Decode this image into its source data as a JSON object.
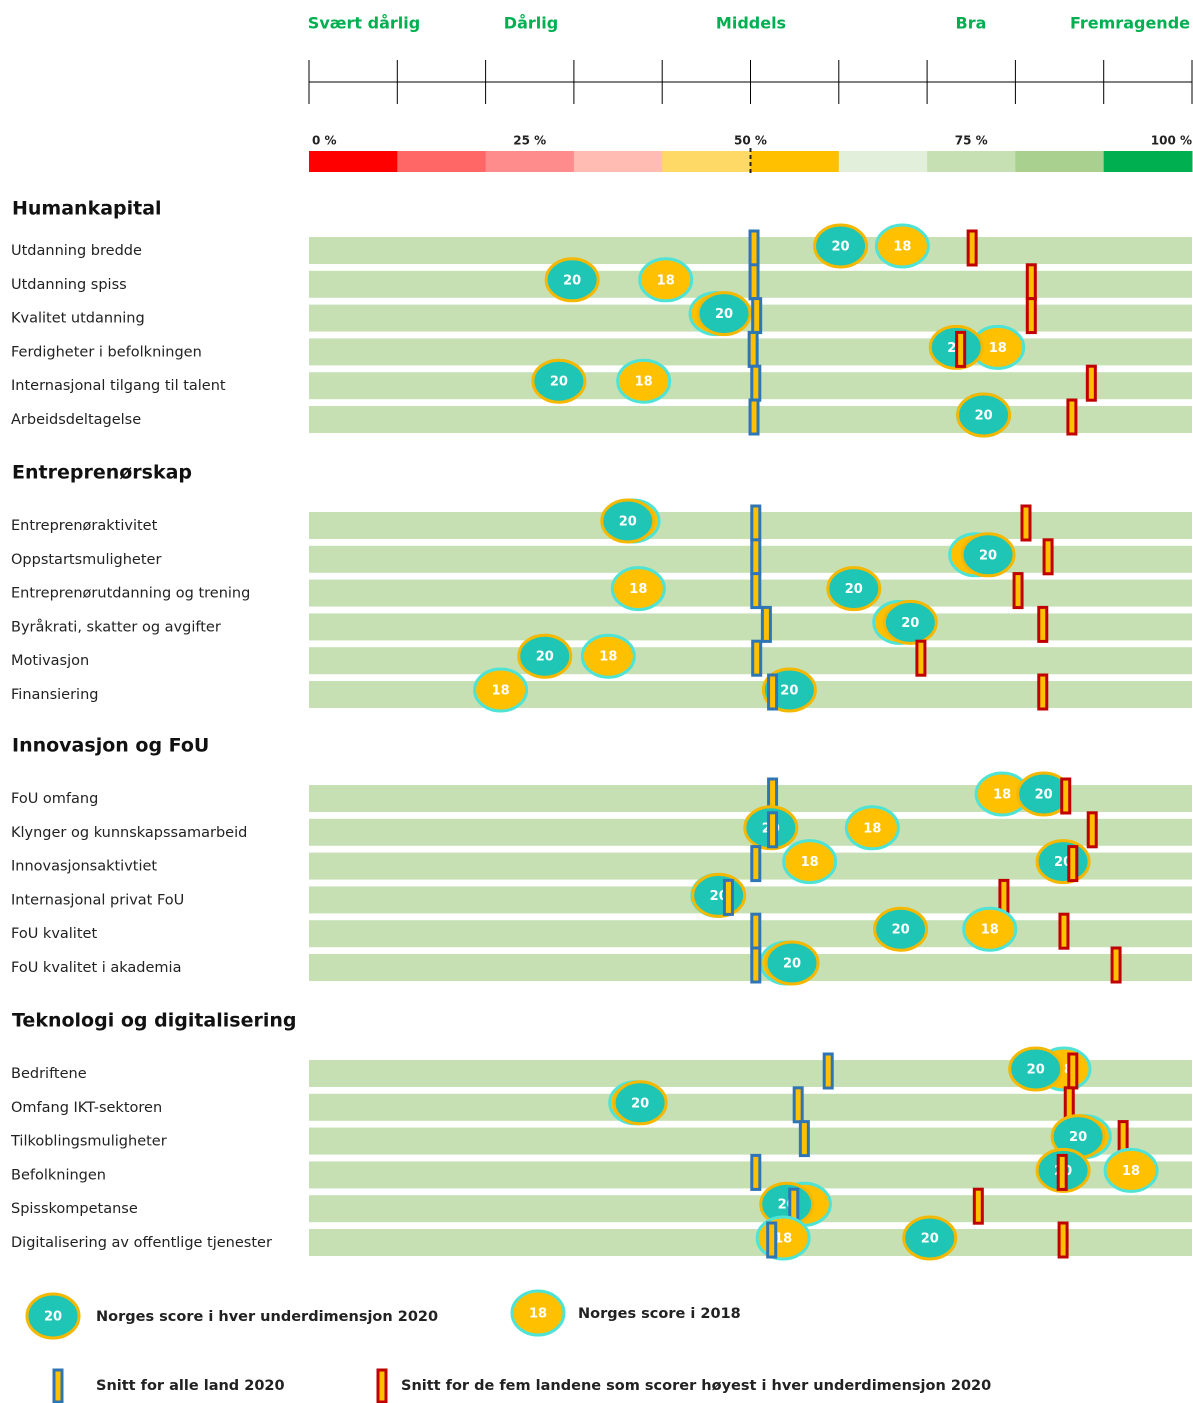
{
  "chart_data": {
    "type": "dot",
    "rating_labels": [
      "Svært dårlig",
      "Dårlig",
      "Middels",
      "Bra",
      "Fremragende"
    ],
    "xlim": [
      0,
      100
    ],
    "xticks": [
      {
        "value": 0,
        "label": "0 %"
      },
      {
        "value": 25,
        "label": "25 %"
      },
      {
        "value": 50,
        "label": "50 %"
      },
      {
        "value": 75,
        "label": "75 %"
      },
      {
        "value": 100,
        "label": "100 %"
      }
    ],
    "xminor_ticks": [
      0,
      10,
      20,
      30,
      40,
      50,
      60,
      70,
      80,
      90,
      100
    ],
    "band_colors": [
      "#ff0000",
      "#ff6666",
      "#ff8c8c",
      "#ffbcb2",
      "#ffd966",
      "#ffc000",
      "#e2efda",
      "#c6e0b4",
      "#a9d08e",
      "#00b050"
    ],
    "row_color": "#c6e0b4",
    "series": [
      {
        "name": "Norges score i hver underdimensjon 2020",
        "marker_label": "20",
        "color": "#1fc6b6",
        "edge": "#f5b800"
      },
      {
        "name": "Norges score i 2018",
        "marker_label": "18",
        "color": "#ffc000",
        "edge": "#4fe3d6"
      },
      {
        "name": "Snitt for alle land 2020",
        "color": "#ffc000",
        "edge": "#2e75b6"
      },
      {
        "name": "Snitt for de fem landene som scorer høyest i hver underdimensjon 2020",
        "color": "#ffc000",
        "edge": "#c00000"
      }
    ],
    "groups": [
      {
        "title": "Humankapital",
        "categories": [
          "Utdanning bredde",
          "Utdanning spiss",
          "Kvalitet utdanning",
          "Ferdigheter i befolkningen",
          "Internasjonal tilgang til talent",
          "Arbeidsdeltagelse"
        ],
        "values": [
          [
            60.2,
            29.8,
            47.0,
            73.3,
            28.3,
            76.4
          ],
          [
            67.2,
            40.4,
            46.1,
            78.0,
            37.9,
            76.4
          ],
          [
            50.4,
            50.4,
            50.7,
            50.3,
            50.6,
            50.4
          ],
          [
            75.1,
            81.8,
            81.8,
            73.8,
            88.6,
            86.4
          ]
        ]
      },
      {
        "title": "Entreprenørskap",
        "categories": [
          "Entreprenøraktivitet",
          "Oppstartsmuligheter",
          "Entreprenørutdanning og trening",
          "Byråkrati, skatter og avgifter",
          "Motivasjon",
          "Finansiering"
        ],
        "values": [
          [
            36.1,
            76.9,
            61.7,
            68.1,
            26.7,
            54.4
          ],
          [
            36.7,
            75.5,
            37.3,
            66.9,
            33.9,
            21.7
          ],
          [
            50.6,
            50.6,
            50.6,
            51.8,
            50.7,
            52.5
          ],
          [
            81.2,
            83.7,
            80.3,
            83.1,
            69.3,
            83.1
          ]
        ]
      },
      {
        "title": "Innovasjon og FoU",
        "categories": [
          "FoU omfang",
          "Klynger og kunnskapssamarbeid",
          "Innovasjonsaktivtiet",
          "Internasjonal privat FoU",
          "FoU kvalitet",
          "FoU kvalitet i akademia"
        ],
        "values": [
          [
            83.2,
            52.3,
            85.4,
            46.4,
            67.0,
            54.7
          ],
          [
            78.5,
            63.8,
            56.7,
            46.3,
            77.1,
            54.1
          ],
          [
            52.5,
            52.5,
            50.6,
            47.5,
            50.6,
            50.6
          ],
          [
            85.7,
            88.7,
            86.5,
            78.7,
            85.5,
            91.4
          ]
        ]
      },
      {
        "title": "Teknologi og digitalisering",
        "categories": [
          "Bedriftene",
          "Omfang IKT-sektoren",
          "Tilkoblingsmuligheter",
          "Befolkningen",
          "Spisskompetanse",
          "Digitalisering av offentlige tjenester"
        ],
        "values": [
          [
            82.3,
            37.5,
            87.1,
            85.4,
            54.1,
            70.3
          ],
          [
            85.5,
            37.0,
            87.8,
            93.1,
            56.1,
            53.7
          ],
          [
            58.8,
            55.4,
            56.1,
            50.6,
            54.9,
            52.4
          ],
          [
            86.5,
            86.1,
            92.2,
            85.3,
            75.8,
            85.4
          ]
        ]
      }
    ]
  }
}
